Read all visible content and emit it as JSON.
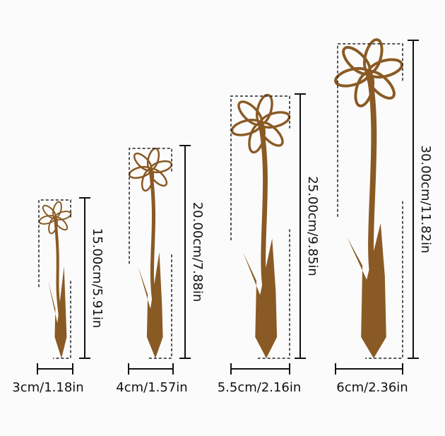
{
  "items": [
    {
      "height": "15.00cm/5.91in",
      "width": "3cm/1.18in"
    },
    {
      "height": "20.00cm/7.88in",
      "width": "4cm/1.57in"
    },
    {
      "height": "25.00cm/9.85in",
      "width": "5.5cm/2.16in"
    },
    {
      "height": "30.00cm/11.82in",
      "width": "6cm/2.36in"
    }
  ]
}
